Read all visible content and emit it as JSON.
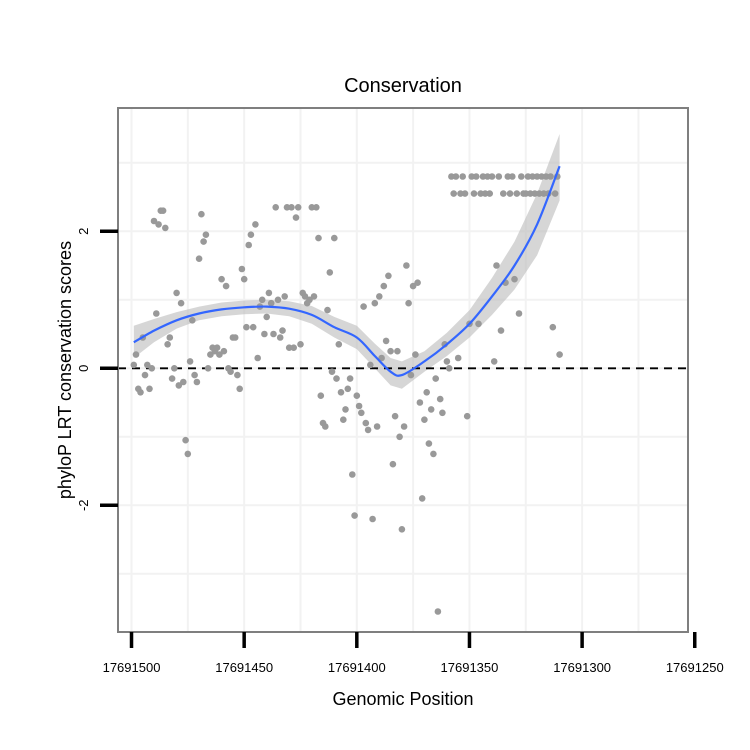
{
  "chart_data": {
    "type": "scatter",
    "title": "Conservation",
    "xlabel": "Genomic Position",
    "ylabel": "phyloP LRT conservation scores",
    "x_reversed": true,
    "xlim": [
      17691506,
      17691253
    ],
    "ylim": [
      -3.85,
      3.8
    ],
    "x_ticks": [
      17691500,
      17691450,
      17691400,
      17691350,
      17691300,
      17691250
    ],
    "x_tick_labels": [
      "17691500",
      "17691450",
      "17691400",
      "17691350",
      "17691300",
      "17691250"
    ],
    "y_ticks": [
      -2,
      0,
      2
    ],
    "y_tick_labels": [
      "-2",
      "0",
      "2"
    ],
    "reference_line": {
      "y": 0,
      "style": "dashed"
    },
    "colors": {
      "points": "#999999",
      "smooth": "#3366ff",
      "ribbon": "#bbbbbb",
      "grid": "#f2f2f2",
      "frame": "#7f7f7f"
    },
    "series": [
      {
        "name": "scores",
        "points": [
          [
            17691499,
            0.05
          ],
          [
            17691498,
            0.2
          ],
          [
            17691497,
            -0.3
          ],
          [
            17691496,
            -0.35
          ],
          [
            17691495,
            0.45
          ],
          [
            17691494,
            -0.1
          ],
          [
            17691493,
            0.05
          ],
          [
            17691492,
            -0.3
          ],
          [
            17691491,
            0.0
          ],
          [
            17691490,
            2.15
          ],
          [
            17691489,
            0.8
          ],
          [
            17691488,
            2.1
          ],
          [
            17691487,
            2.3
          ],
          [
            17691486,
            2.3
          ],
          [
            17691485,
            2.05
          ],
          [
            17691484,
            0.35
          ],
          [
            17691483,
            0.45
          ],
          [
            17691482,
            -0.15
          ],
          [
            17691481,
            0.0
          ],
          [
            17691480,
            1.1
          ],
          [
            17691479,
            -0.25
          ],
          [
            17691478,
            0.95
          ],
          [
            17691477,
            -0.2
          ],
          [
            17691476,
            -1.05
          ],
          [
            17691475,
            -1.25
          ],
          [
            17691474,
            0.1
          ],
          [
            17691473,
            0.7
          ],
          [
            17691472,
            -0.1
          ],
          [
            17691471,
            -0.2
          ],
          [
            17691470,
            1.6
          ],
          [
            17691469,
            2.25
          ],
          [
            17691468,
            1.85
          ],
          [
            17691467,
            1.95
          ],
          [
            17691466,
            0.0
          ],
          [
            17691465,
            0.2
          ],
          [
            17691464,
            0.3
          ],
          [
            17691463,
            0.25
          ],
          [
            17691462,
            0.3
          ],
          [
            17691461,
            0.2
          ],
          [
            17691460,
            1.3
          ],
          [
            17691459,
            0.25
          ],
          [
            17691458,
            1.2
          ],
          [
            17691457,
            0.0
          ],
          [
            17691456,
            -0.05
          ],
          [
            17691455,
            0.45
          ],
          [
            17691454,
            0.45
          ],
          [
            17691453,
            -0.1
          ],
          [
            17691452,
            -0.3
          ],
          [
            17691451,
            1.45
          ],
          [
            17691450,
            1.3
          ],
          [
            17691449,
            0.6
          ],
          [
            17691448,
            1.8
          ],
          [
            17691447,
            1.95
          ],
          [
            17691446,
            0.6
          ],
          [
            17691445,
            2.1
          ],
          [
            17691444,
            0.15
          ],
          [
            17691443,
            0.9
          ],
          [
            17691442,
            1.0
          ],
          [
            17691441,
            0.5
          ],
          [
            17691440,
            0.75
          ],
          [
            17691439,
            1.1
          ],
          [
            17691438,
            0.95
          ],
          [
            17691437,
            0.5
          ],
          [
            17691436,
            2.35
          ],
          [
            17691435,
            1.0
          ],
          [
            17691434,
            0.45
          ],
          [
            17691433,
            0.55
          ],
          [
            17691432,
            1.05
          ],
          [
            17691431,
            2.35
          ],
          [
            17691430,
            0.3
          ],
          [
            17691429,
            2.35
          ],
          [
            17691428,
            0.3
          ],
          [
            17691427,
            2.2
          ],
          [
            17691426,
            2.35
          ],
          [
            17691425,
            0.35
          ],
          [
            17691424,
            1.1
          ],
          [
            17691423,
            1.05
          ],
          [
            17691422,
            0.95
          ],
          [
            17691421,
            1.0
          ],
          [
            17691420,
            2.35
          ],
          [
            17691419,
            1.05
          ],
          [
            17691418,
            2.35
          ],
          [
            17691417,
            1.9
          ],
          [
            17691416,
            -0.4
          ],
          [
            17691415,
            -0.8
          ],
          [
            17691414,
            -0.85
          ],
          [
            17691413,
            0.85
          ],
          [
            17691412,
            1.4
          ],
          [
            17691411,
            -0.05
          ],
          [
            17691410,
            1.9
          ],
          [
            17691409,
            -0.15
          ],
          [
            17691408,
            0.35
          ],
          [
            17691407,
            -0.35
          ],
          [
            17691406,
            -0.75
          ],
          [
            17691405,
            -0.6
          ],
          [
            17691404,
            -0.3
          ],
          [
            17691403,
            -0.15
          ],
          [
            17691402,
            -1.55
          ],
          [
            17691401,
            -2.15
          ],
          [
            17691400,
            -0.4
          ],
          [
            17691399,
            -0.55
          ],
          [
            17691398,
            -0.65
          ],
          [
            17691397,
            0.9
          ],
          [
            17691396,
            -0.8
          ],
          [
            17691395,
            -0.9
          ],
          [
            17691394,
            0.05
          ],
          [
            17691393,
            -2.2
          ],
          [
            17691392,
            0.95
          ],
          [
            17691391,
            -0.85
          ],
          [
            17691390,
            1.05
          ],
          [
            17691389,
            0.15
          ],
          [
            17691388,
            1.2
          ],
          [
            17691387,
            0.4
          ],
          [
            17691386,
            1.35
          ],
          [
            17691385,
            0.25
          ],
          [
            17691384,
            -1.4
          ],
          [
            17691383,
            -0.7
          ],
          [
            17691382,
            0.25
          ],
          [
            17691381,
            -1.0
          ],
          [
            17691380,
            -2.35
          ],
          [
            17691379,
            -0.85
          ],
          [
            17691378,
            1.5
          ],
          [
            17691377,
            0.95
          ],
          [
            17691376,
            -0.1
          ],
          [
            17691375,
            1.2
          ],
          [
            17691374,
            0.2
          ],
          [
            17691373,
            1.25
          ],
          [
            17691372,
            -0.5
          ],
          [
            17691371,
            -1.9
          ],
          [
            17691370,
            -0.75
          ],
          [
            17691369,
            -0.35
          ],
          [
            17691368,
            -1.1
          ],
          [
            17691367,
            -0.6
          ],
          [
            17691366,
            -1.25
          ],
          [
            17691365,
            -0.15
          ],
          [
            17691364,
            -3.55
          ],
          [
            17691363,
            -0.45
          ],
          [
            17691362,
            -0.65
          ],
          [
            17691361,
            0.35
          ],
          [
            17691360,
            0.1
          ],
          [
            17691359,
            0.0
          ],
          [
            17691358,
            2.8
          ],
          [
            17691357,
            2.55
          ],
          [
            17691356,
            2.8
          ],
          [
            17691355,
            0.15
          ],
          [
            17691354,
            2.55
          ],
          [
            17691353,
            2.8
          ],
          [
            17691352,
            2.55
          ],
          [
            17691351,
            -0.7
          ],
          [
            17691350,
            0.65
          ],
          [
            17691349,
            2.8
          ],
          [
            17691348,
            2.55
          ],
          [
            17691347,
            2.8
          ],
          [
            17691346,
            0.65
          ],
          [
            17691345,
            2.55
          ],
          [
            17691344,
            2.8
          ],
          [
            17691343,
            2.55
          ],
          [
            17691342,
            2.8
          ],
          [
            17691341,
            2.55
          ],
          [
            17691340,
            2.8
          ],
          [
            17691339,
            0.1
          ],
          [
            17691338,
            1.5
          ],
          [
            17691337,
            2.8
          ],
          [
            17691336,
            0.55
          ],
          [
            17691335,
            2.55
          ],
          [
            17691334,
            1.25
          ],
          [
            17691333,
            2.8
          ],
          [
            17691332,
            2.55
          ],
          [
            17691331,
            2.8
          ],
          [
            17691330,
            1.3
          ],
          [
            17691329,
            2.55
          ],
          [
            17691328,
            0.8
          ],
          [
            17691327,
            2.8
          ],
          [
            17691326,
            2.55
          ],
          [
            17691325,
            2.55
          ],
          [
            17691324,
            2.8
          ],
          [
            17691323,
            2.55
          ],
          [
            17691322,
            2.8
          ],
          [
            17691321,
            2.55
          ],
          [
            17691320,
            2.8
          ],
          [
            17691319,
            2.55
          ],
          [
            17691318,
            2.8
          ],
          [
            17691317,
            2.55
          ],
          [
            17691316,
            2.8
          ],
          [
            17691315,
            2.55
          ],
          [
            17691314,
            2.8
          ],
          [
            17691313,
            0.6
          ],
          [
            17691312,
            2.55
          ],
          [
            17691311,
            2.8
          ],
          [
            17691310,
            0.2
          ]
        ]
      },
      {
        "name": "loess fit",
        "type": "line",
        "x": [
          17691499,
          17691490,
          17691480,
          17691470,
          17691460,
          17691450,
          17691440,
          17691430,
          17691420,
          17691410,
          17691400,
          17691392,
          17691385,
          17691380,
          17691370,
          17691360,
          17691350,
          17691340,
          17691330,
          17691320,
          17691310
        ],
        "y": [
          0.38,
          0.55,
          0.7,
          0.8,
          0.86,
          0.89,
          0.9,
          0.87,
          0.78,
          0.6,
          0.45,
          0.18,
          -0.05,
          -0.1,
          0.1,
          0.35,
          0.65,
          1.05,
          1.5,
          2.1,
          2.95
        ],
        "ci_low": [
          0.15,
          0.38,
          0.58,
          0.7,
          0.76,
          0.79,
          0.8,
          0.76,
          0.65,
          0.45,
          0.28,
          0.0,
          -0.25,
          -0.3,
          -0.05,
          0.18,
          0.45,
          0.78,
          1.15,
          1.65,
          2.45
        ],
        "ci_high": [
          0.62,
          0.72,
          0.82,
          0.9,
          0.96,
          0.99,
          1.0,
          0.98,
          0.91,
          0.75,
          0.62,
          0.36,
          0.15,
          0.1,
          0.25,
          0.52,
          0.85,
          1.32,
          1.85,
          2.55,
          3.42
        ]
      }
    ]
  }
}
